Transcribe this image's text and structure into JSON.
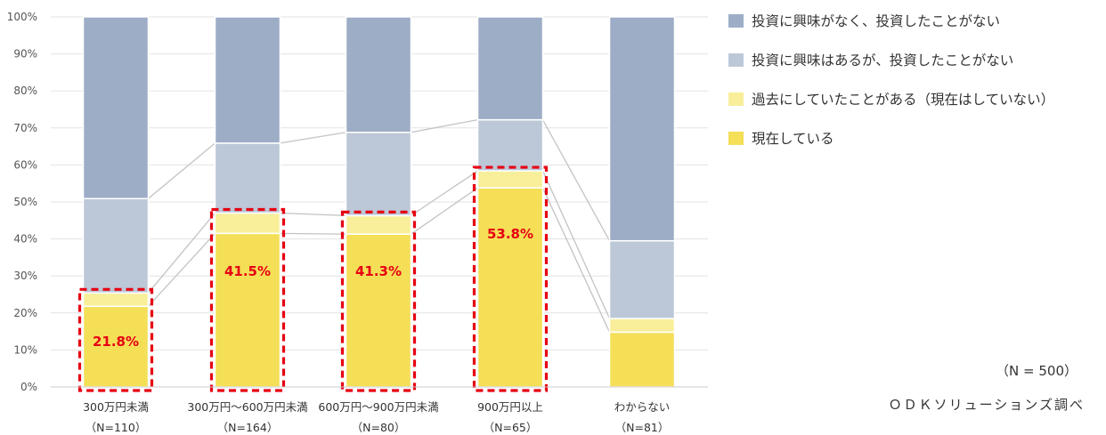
{
  "chart_data": {
    "type": "bar",
    "stacked": true,
    "percent": true,
    "ylim": [
      0,
      100
    ],
    "yticks": [
      "0%",
      "10%",
      "20%",
      "30%",
      "40%",
      "50%",
      "60%",
      "70%",
      "80%",
      "90%",
      "100%"
    ],
    "categories": [
      "300万円未満",
      "300万円～600万円未満",
      "600万円～900万円未満",
      "900万円以上",
      "わからない"
    ],
    "category_counts": [
      "（N=110）",
      "（N=164）",
      "（N=80）",
      "（N=65）",
      "（N=81）"
    ],
    "series": [
      {
        "name": "現在している",
        "color": "#f4df57",
        "values": [
          21.8,
          41.5,
          41.3,
          53.8,
          14.8
        ]
      },
      {
        "name": "過去にしていたことがある（現在はしていない）",
        "color": "#f9ef9a",
        "values": [
          3.6,
          5.5,
          5.0,
          4.6,
          3.7
        ]
      },
      {
        "name": "投資に興味はあるが、投資したことがない",
        "color": "#bcc7d7",
        "values": [
          25.5,
          18.9,
          22.5,
          13.8,
          21.0
        ]
      },
      {
        "name": "投資に興味がなく、投資したことがない",
        "color": "#9dadc6",
        "values": [
          49.1,
          34.1,
          31.2,
          27.8,
          60.5
        ]
      }
    ],
    "data_labels": [
      "21.8%",
      "41.5%",
      "41.3%",
      "53.8%"
    ],
    "highlight_color": "#e60012",
    "grid": true,
    "legend_position": "right",
    "legend_order": [
      3,
      2,
      1,
      0
    ],
    "note": "（N = 500）",
    "source": "ＯＤＫソリューションズ調べ"
  }
}
